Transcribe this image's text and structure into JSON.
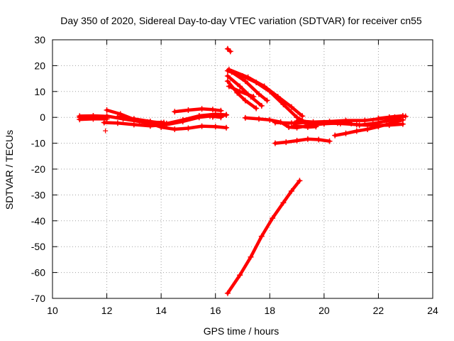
{
  "chart_data": {
    "type": "scatter",
    "title": "Day 350 of 2020, Sidereal Day-to-day VTEC variation (SDTVAR) for receiver cn55",
    "xlabel": "GPS time / hours",
    "ylabel": "SDTVAR / TECUs",
    "xlim": [
      10,
      24
    ],
    "ylim": [
      -70,
      30
    ],
    "xticks": [
      10,
      12,
      14,
      16,
      18,
      20,
      22,
      24
    ],
    "yticks": [
      -70,
      -60,
      -50,
      -40,
      -30,
      -20,
      -10,
      0,
      10,
      20,
      30
    ],
    "grid": true,
    "legend": "none",
    "marker": "plus",
    "color": "#ff0000",
    "tracks": [
      [
        [
          11.0,
          0.5
        ],
        [
          11.5,
          0.6
        ],
        [
          12.0,
          0.4
        ]
      ],
      [
        [
          11.0,
          -0.8
        ],
        [
          11.5,
          -0.6
        ],
        [
          12.0,
          -0.6
        ]
      ],
      [
        [
          11.0,
          0.0
        ],
        [
          11.5,
          0.0
        ],
        [
          11.9,
          -0.2
        ]
      ],
      [
        [
          11.9,
          -2.0
        ],
        [
          12.4,
          -2.2
        ],
        [
          13.0,
          -2.8
        ],
        [
          13.6,
          -3.3
        ],
        [
          14.2,
          -2.8
        ],
        [
          14.8,
          -1.6
        ],
        [
          15.4,
          0.0
        ],
        [
          15.8,
          0.5
        ],
        [
          16.2,
          0.0
        ]
      ],
      [
        [
          12.0,
          2.8
        ],
        [
          12.5,
          1.3
        ],
        [
          13.0,
          -0.8
        ],
        [
          13.5,
          -1.8
        ],
        [
          14.1,
          -2.0
        ]
      ],
      [
        [
          12.0,
          0.5
        ],
        [
          12.6,
          -0.6
        ],
        [
          13.2,
          -1.6
        ],
        [
          13.7,
          -2.6
        ],
        [
          14.2,
          -2.4
        ],
        [
          14.8,
          -1.0
        ],
        [
          15.4,
          0.6
        ],
        [
          16.0,
          1.2
        ],
        [
          16.4,
          1.0
        ]
      ],
      [
        [
          12.4,
          0.2
        ],
        [
          13.0,
          -0.6
        ],
        [
          13.6,
          -1.6
        ],
        [
          14.0,
          -2.2
        ]
      ],
      [
        [
          13.5,
          -2.0
        ],
        [
          14.0,
          -3.8
        ],
        [
          14.5,
          -4.6
        ],
        [
          15.0,
          -4.2
        ],
        [
          15.5,
          -3.4
        ],
        [
          16.0,
          -3.6
        ],
        [
          16.4,
          -4.0
        ]
      ],
      [
        [
          14.5,
          2.2
        ],
        [
          15.0,
          2.8
        ],
        [
          15.5,
          3.3
        ],
        [
          15.9,
          3.0
        ],
        [
          16.2,
          2.6
        ]
      ],
      [
        [
          15.9,
          0.2
        ],
        [
          16.2,
          0.6
        ],
        [
          16.4,
          0.9
        ]
      ],
      [
        [
          16.45,
          18.0
        ],
        [
          17.0,
          16.0
        ],
        [
          17.5,
          13.5
        ],
        [
          18.0,
          10.0
        ],
        [
          18.5,
          5.0
        ],
        [
          19.0,
          0.0
        ],
        [
          19.4,
          -2.3
        ]
      ],
      [
        [
          16.45,
          16.0
        ],
        [
          16.9,
          12.0
        ],
        [
          17.3,
          8.0
        ],
        [
          17.7,
          4.5
        ]
      ],
      [
        [
          16.45,
          14.0
        ],
        [
          16.8,
          9.5
        ],
        [
          17.1,
          6.5
        ],
        [
          17.5,
          3.5
        ]
      ],
      [
        [
          16.6,
          17.5
        ],
        [
          17.1,
          14.0
        ],
        [
          17.6,
          9.0
        ],
        [
          17.9,
          6.5
        ]
      ],
      [
        [
          16.5,
          12.0
        ],
        [
          16.9,
          10.0
        ],
        [
          17.4,
          8.0
        ]
      ],
      [
        [
          16.5,
          18.5
        ],
        [
          17.2,
          15.5
        ],
        [
          17.8,
          12.0
        ],
        [
          18.3,
          8.0
        ],
        [
          18.8,
          4.0
        ],
        [
          19.2,
          0.5
        ]
      ],
      [
        [
          16.45,
          -68.0
        ],
        [
          16.9,
          -61.0
        ],
        [
          17.3,
          -54.0
        ],
        [
          17.7,
          -46.0
        ],
        [
          18.1,
          -39.0
        ],
        [
          18.5,
          -33.0
        ],
        [
          18.8,
          -28.5
        ],
        [
          19.1,
          -24.5
        ]
      ],
      [
        [
          16.45,
          26.5
        ],
        [
          16.55,
          25.5
        ]
      ],
      [
        [
          17.1,
          -0.2
        ],
        [
          17.6,
          -0.6
        ],
        [
          18.0,
          -1.0
        ],
        [
          18.4,
          -1.8
        ],
        [
          18.7,
          -3.8
        ],
        [
          19.0,
          -4.0
        ],
        [
          19.5,
          -3.0
        ],
        [
          20.0,
          -2.5
        ],
        [
          20.5,
          -2.2
        ],
        [
          21.0,
          -2.4
        ]
      ],
      [
        [
          18.2,
          -2.0
        ],
        [
          18.8,
          -2.2
        ],
        [
          19.3,
          -2.0
        ],
        [
          20.0,
          -2.2
        ],
        [
          20.6,
          -2.4
        ],
        [
          21.2,
          -2.8
        ],
        [
          21.8,
          -3.2
        ],
        [
          22.4,
          -3.0
        ],
        [
          22.9,
          -2.6
        ]
      ],
      [
        [
          19.0,
          -1.4
        ],
        [
          19.6,
          -1.8
        ],
        [
          20.2,
          -1.6
        ],
        [
          20.8,
          -1.2
        ],
        [
          21.5,
          -1.2
        ],
        [
          22.0,
          -0.6
        ],
        [
          22.6,
          0.1
        ],
        [
          23.0,
          0.4
        ]
      ],
      [
        [
          18.9,
          -3.2
        ],
        [
          19.4,
          -3.8
        ],
        [
          19.7,
          -3.6
        ]
      ],
      [
        [
          18.2,
          -10.0
        ],
        [
          18.6,
          -9.6
        ],
        [
          19.0,
          -9.0
        ],
        [
          19.4,
          -8.4
        ],
        [
          19.8,
          -8.6
        ],
        [
          20.2,
          -9.2
        ]
      ],
      [
        [
          20.4,
          -7.0
        ],
        [
          20.8,
          -6.2
        ],
        [
          21.2,
          -5.3
        ],
        [
          21.6,
          -4.6
        ],
        [
          22.0,
          -3.6
        ],
        [
          22.5,
          -2.2
        ],
        [
          22.9,
          -1.0
        ]
      ],
      [
        [
          21.3,
          -3.0
        ],
        [
          21.8,
          -2.4
        ],
        [
          22.3,
          -1.4
        ],
        [
          22.8,
          -0.6
        ]
      ],
      [
        [
          22.0,
          -0.4
        ],
        [
          22.4,
          0.1
        ],
        [
          22.9,
          0.6
        ]
      ]
    ],
    "points": [
      [
        11.95,
        -5.2
      ]
    ]
  }
}
